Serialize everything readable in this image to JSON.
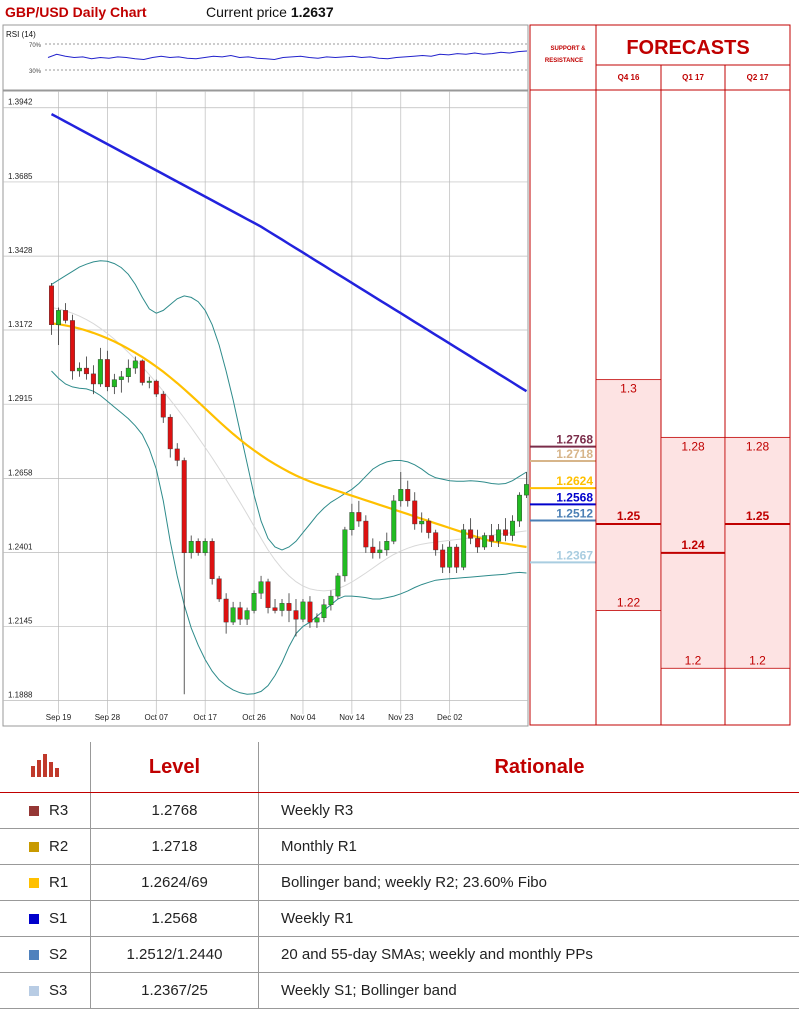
{
  "header": {
    "title": "GBP/USD Daily Chart",
    "price_label": "Current price",
    "price_value": "1.2637"
  },
  "rsi": {
    "label": "RSI (14)",
    "levels": [
      "70%",
      "30%"
    ],
    "values": [
      50,
      55,
      52,
      50,
      51,
      48,
      50,
      49,
      51,
      50,
      48,
      47,
      50,
      52,
      50,
      51,
      49,
      48,
      50,
      52,
      51,
      53,
      50,
      51,
      49,
      48,
      47,
      50,
      51,
      52,
      50,
      49,
      51,
      50,
      51,
      52,
      50,
      51,
      49,
      48,
      50,
      51,
      52,
      53,
      52,
      55,
      54,
      56,
      55,
      57,
      55,
      56,
      58,
      57,
      59,
      60
    ]
  },
  "chart_data": {
    "type": "candlestick",
    "title": "GBP/USD Daily Chart",
    "ylim": [
      1.18,
      1.4
    ],
    "y_ticks": [
      "1.3942",
      "1.3685",
      "1.3428",
      "1.3172",
      "1.2915",
      "1.2658",
      "1.2401",
      "1.2145",
      "1.1888"
    ],
    "x_tick_labels": [
      "Sep 19",
      "Sep 28",
      "Oct 07",
      "Oct 17",
      "Oct 26",
      "Nov 04",
      "Nov 14",
      "Nov 23",
      "Dec 02"
    ],
    "x_tick_positions": [
      1,
      8,
      15,
      22,
      29,
      36,
      43,
      50,
      57
    ],
    "candles": [
      [
        1.3325,
        1.3335,
        1.3155,
        1.319
      ],
      [
        1.319,
        1.325,
        1.312,
        1.324
      ],
      [
        1.324,
        1.3265,
        1.3195,
        1.3205
      ],
      [
        1.3205,
        1.3225,
        1.3,
        1.303
      ],
      [
        1.303,
        1.306,
        1.301,
        1.304
      ],
      [
        1.304,
        1.308,
        1.3,
        1.302
      ],
      [
        1.302,
        1.305,
        1.295,
        1.2985
      ],
      [
        1.2985,
        1.311,
        1.2975,
        1.307
      ],
      [
        1.307,
        1.31,
        1.296,
        1.2975
      ],
      [
        1.2975,
        1.302,
        1.295,
        1.3
      ],
      [
        1.3,
        1.303,
        1.2955,
        1.301
      ],
      [
        1.301,
        1.307,
        1.299,
        1.304
      ],
      [
        1.304,
        1.308,
        1.302,
        1.3065
      ],
      [
        1.3065,
        1.307,
        1.298,
        1.299
      ],
      [
        1.299,
        1.301,
        1.297,
        1.2995
      ],
      [
        1.2995,
        1.3,
        1.294,
        1.295
      ],
      [
        1.295,
        1.296,
        1.285,
        1.287
      ],
      [
        1.287,
        1.288,
        1.273,
        1.276
      ],
      [
        1.276,
        1.278,
        1.27,
        1.272
      ],
      [
        1.272,
        1.273,
        1.191,
        1.24
      ],
      [
        1.24,
        1.246,
        1.238,
        1.244
      ],
      [
        1.244,
        1.245,
        1.239,
        1.24
      ],
      [
        1.24,
        1.245,
        1.239,
        1.244
      ],
      [
        1.244,
        1.245,
        1.229,
        1.231
      ],
      [
        1.231,
        1.232,
        1.223,
        1.224
      ],
      [
        1.224,
        1.226,
        1.212,
        1.216
      ],
      [
        1.216,
        1.223,
        1.215,
        1.221
      ],
      [
        1.221,
        1.223,
        1.215,
        1.217
      ],
      [
        1.217,
        1.221,
        1.215,
        1.22
      ],
      [
        1.22,
        1.227,
        1.219,
        1.226
      ],
      [
        1.226,
        1.232,
        1.224,
        1.23
      ],
      [
        1.23,
        1.231,
        1.219,
        1.221
      ],
      [
        1.221,
        1.224,
        1.219,
        1.22
      ],
      [
        1.22,
        1.224,
        1.218,
        1.2225
      ],
      [
        1.2225,
        1.226,
        1.216,
        1.22
      ],
      [
        1.22,
        1.224,
        1.211,
        1.217
      ],
      [
        1.217,
        1.224,
        1.216,
        1.223
      ],
      [
        1.223,
        1.225,
        1.214,
        1.216
      ],
      [
        1.216,
        1.219,
        1.214,
        1.2175
      ],
      [
        1.2175,
        1.224,
        1.216,
        1.222
      ],
      [
        1.222,
        1.227,
        1.22,
        1.225
      ],
      [
        1.225,
        1.233,
        1.224,
        1.232
      ],
      [
        1.232,
        1.249,
        1.23,
        1.248
      ],
      [
        1.248,
        1.257,
        1.246,
        1.254
      ],
      [
        1.254,
        1.258,
        1.249,
        1.251
      ],
      [
        1.251,
        1.253,
        1.24,
        1.242
      ],
      [
        1.242,
        1.245,
        1.238,
        1.24
      ],
      [
        1.24,
        1.244,
        1.238,
        1.241
      ],
      [
        1.241,
        1.247,
        1.239,
        1.244
      ],
      [
        1.244,
        1.26,
        1.243,
        1.258
      ],
      [
        1.258,
        1.268,
        1.256,
        1.262
      ],
      [
        1.262,
        1.265,
        1.256,
        1.258
      ],
      [
        1.258,
        1.261,
        1.248,
        1.25
      ],
      [
        1.25,
        1.254,
        1.247,
        1.251
      ],
      [
        1.251,
        1.252,
        1.245,
        1.247
      ],
      [
        1.247,
        1.248,
        1.239,
        1.241
      ],
      [
        1.241,
        1.243,
        1.233,
        1.235
      ],
      [
        1.235,
        1.244,
        1.233,
        1.242
      ],
      [
        1.242,
        1.243,
        1.233,
        1.235
      ],
      [
        1.235,
        1.25,
        1.234,
        1.248
      ],
      [
        1.248,
        1.252,
        1.243,
        1.245
      ],
      [
        1.245,
        1.248,
        1.24,
        1.242
      ],
      [
        1.242,
        1.247,
        1.241,
        1.246
      ],
      [
        1.246,
        1.25,
        1.242,
        1.244
      ],
      [
        1.244,
        1.25,
        1.242,
        1.248
      ],
      [
        1.248,
        1.252,
        1.244,
        1.246
      ],
      [
        1.246,
        1.253,
        1.244,
        1.251
      ],
      [
        1.251,
        1.261,
        1.249,
        1.26
      ],
      [
        1.26,
        1.268,
        1.259,
        1.2637
      ]
    ],
    "sma200": [
      1.392,
      1.3907,
      1.3894,
      1.3881,
      1.3868,
      1.3855,
      1.3842,
      1.3829,
      1.3816,
      1.3803,
      1.379,
      1.3777,
      1.3764,
      1.3751,
      1.3738,
      1.3725,
      1.3712,
      1.3699,
      1.3686,
      1.3673,
      1.366,
      1.3647,
      1.3634,
      1.3621,
      1.3608,
      1.3595,
      1.3582,
      1.3569,
      1.3556,
      1.3543,
      1.353,
      1.3515,
      1.35,
      1.3485,
      1.347,
      1.3455,
      1.344,
      1.3425,
      1.341,
      1.3395,
      1.338,
      1.3365,
      1.335,
      1.3335,
      1.332,
      1.3305,
      1.329,
      1.3275,
      1.326,
      1.3245,
      1.323,
      1.3215,
      1.32,
      1.3185,
      1.317,
      1.3155,
      1.314,
      1.3125,
      1.311,
      1.3095,
      1.308,
      1.3065,
      1.305,
      1.3035,
      1.302,
      1.3005,
      1.299,
      1.2975,
      1.296
    ],
    "sma55": [
      1.3195,
      1.3192,
      1.3188,
      1.3183,
      1.3177,
      1.317,
      1.3162,
      1.3153,
      1.3143,
      1.3132,
      1.312,
      1.3107,
      1.3093,
      1.3078,
      1.3062,
      1.3045,
      1.3027,
      1.3008,
      1.2988,
      1.2967,
      1.2945,
      1.2923,
      1.29,
      1.2877,
      1.2855,
      1.2833,
      1.2812,
      1.2792,
      1.2773,
      1.2755,
      1.2738,
      1.2722,
      1.2707,
      1.2693,
      1.268,
      1.2668,
      1.2657,
      1.2647,
      1.2638,
      1.263,
      1.2622,
      1.2614,
      1.2606,
      1.2598,
      1.259,
      1.2582,
      1.2574,
      1.2566,
      1.2558,
      1.255,
      1.2542,
      1.2534,
      1.2526,
      1.2518,
      1.251,
      1.2502,
      1.2494,
      1.2486,
      1.2478,
      1.247,
      1.2462,
      1.2454,
      1.2446,
      1.244,
      1.2436,
      1.2432,
      1.2428,
      1.2424,
      1.242
    ],
    "sma20": [
      1.325,
      1.3245,
      1.3238,
      1.323,
      1.322,
      1.3208,
      1.3194,
      1.3178,
      1.316,
      1.314,
      1.3118,
      1.3095,
      1.307,
      1.3044,
      1.3017,
      1.2989,
      1.296,
      1.293,
      1.2899,
      1.2867,
      1.2834,
      1.28,
      1.2765,
      1.2729,
      1.2692,
      1.2654,
      1.2615,
      1.2575,
      1.2534,
      1.2492,
      1.245,
      1.241,
      1.2375,
      1.2345,
      1.232,
      1.23,
      1.2285,
      1.2275,
      1.227,
      1.2268,
      1.227,
      1.2276,
      1.2286,
      1.2299,
      1.2314,
      1.233,
      1.2347,
      1.2364,
      1.238,
      1.2394,
      1.2406,
      1.2416,
      1.2424,
      1.243,
      1.2434,
      1.2437,
      1.244,
      1.2443,
      1.2446,
      1.2449,
      1.2452,
      1.2455,
      1.2458,
      1.2461,
      1.2464,
      1.2467,
      1.247,
      1.2473,
      1.2476
    ],
    "bb_upper": [
      1.333,
      1.3345,
      1.336,
      1.3375,
      1.339,
      1.34,
      1.3408,
      1.3412,
      1.341,
      1.3402,
      1.3388,
      1.3365,
      1.333,
      1.3285,
      1.3245,
      1.323,
      1.324,
      1.326,
      1.328,
      1.329,
      1.3285,
      1.327,
      1.324,
      1.319,
      1.312,
      1.303,
      1.293,
      1.282,
      1.271,
      1.26,
      1.251,
      1.245,
      1.242,
      1.241,
      1.242,
      1.244,
      1.247,
      1.25,
      1.253,
      1.2555,
      1.2575,
      1.259,
      1.2605,
      1.262,
      1.264,
      1.2665,
      1.269,
      1.2705,
      1.2715,
      1.272,
      1.272,
      1.2715,
      1.2705,
      1.269,
      1.2672,
      1.266,
      1.2655,
      1.265,
      1.2648,
      1.2648,
      1.265,
      1.2648,
      1.2645,
      1.264,
      1.2638,
      1.264,
      1.265,
      1.2665,
      1.268
    ],
    "bb_lower": [
      1.303,
      1.3005,
      1.2985,
      1.2975,
      1.297,
      1.2968,
      1.296,
      1.2945,
      1.2925,
      1.2905,
      1.2885,
      1.2865,
      1.284,
      1.281,
      1.276,
      1.269,
      1.258,
      1.244,
      1.232,
      1.222,
      1.214,
      1.208,
      1.203,
      1.199,
      1.196,
      1.194,
      1.1925,
      1.1915,
      1.191,
      1.1912,
      1.192,
      1.194,
      1.1975,
      1.202,
      1.2075,
      1.212,
      1.2145,
      1.216,
      1.218,
      1.22,
      1.222,
      1.224,
      1.225,
      1.225,
      1.2248,
      1.2245,
      1.224,
      1.224,
      1.2245,
      1.225,
      1.2258,
      1.2268,
      1.228,
      1.229,
      1.2298,
      1.2305,
      1.2308,
      1.231,
      1.2312,
      1.2314,
      1.2316,
      1.2318,
      1.232,
      1.2322,
      1.2324,
      1.2326,
      1.233,
      1.2332,
      1.233
    ]
  },
  "support_resistance": {
    "header": "SUPPORT & RESISTANCE",
    "levels": [
      {
        "value": "1.2768",
        "color": "#7b2d4a"
      },
      {
        "value": "1.2718",
        "color": "#d7b58a"
      },
      {
        "value": "1.2624",
        "color": "#ffc000"
      },
      {
        "value": "1.2568",
        "color": "#0000cc"
      },
      {
        "value": "1.2512",
        "color": "#4a7fb5"
      },
      {
        "value": "1.2367",
        "color": "#a9cde0"
      }
    ]
  },
  "forecasts": {
    "title": "FORECASTS",
    "columns": [
      {
        "label": "Q4 16",
        "high": "1.3",
        "mid": "1.25",
        "low": "1.22"
      },
      {
        "label": "Q1 17",
        "high": "1.28",
        "mid": "1.24",
        "low": "1.2"
      },
      {
        "label": "Q2 17",
        "high": "1.28",
        "mid": "1.25",
        "low": "1.2"
      }
    ]
  },
  "table": {
    "headers": [
      "Level",
      "Rationale"
    ],
    "rows": [
      {
        "name": "R3",
        "level": "1.2768",
        "rationale": "Weekly R3",
        "color": "#953735"
      },
      {
        "name": "R2",
        "level": "1.2718",
        "rationale": "Monthly R1",
        "color": "#c89a00"
      },
      {
        "name": "R1",
        "level": "1.2624/69",
        "rationale": "Bollinger band; weekly R2; 23.60% Fibo",
        "color": "#ffc000"
      },
      {
        "name": "S1",
        "level": "1.2568",
        "rationale": "Weekly R1",
        "color": "#0000cc"
      },
      {
        "name": "S2",
        "level": "1.2512/1.2440",
        "rationale": "20 and 55-day SMAs; weekly and monthly PPs",
        "color": "#4f81bd"
      },
      {
        "name": "S3",
        "level": "1.2367/25",
        "rationale": "Weekly S1; Bollinger band",
        "color": "#b8cce4"
      }
    ]
  },
  "colors": {
    "accent": "#c00000",
    "sma200": "#2222dd",
    "sma55": "#ffc000",
    "bollinger": "#2e8b8b",
    "bull": "#22bb22",
    "bear": "#dd1111"
  }
}
